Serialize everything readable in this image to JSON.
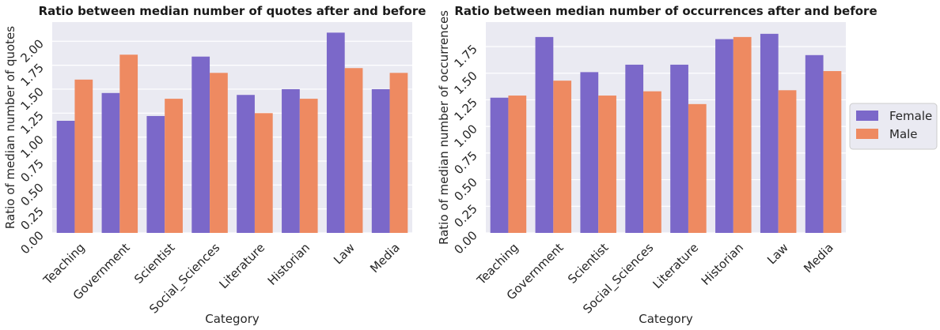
{
  "colors": {
    "female": "#7B68C9",
    "male": "#EE8A61",
    "plot_bg": "#EAEAF2",
    "grid": "#FFFFFF"
  },
  "legend": {
    "placement": "center-right",
    "entries": [
      "Female",
      "Male"
    ]
  },
  "chart_data": [
    {
      "type": "bar",
      "title": "Ratio between median number of quotes after and before",
      "xlabel": "Category",
      "ylabel": "Ratio of median number of quotes",
      "categories": [
        "Teaching",
        "Government",
        "Scientist",
        "Social_Sciences",
        "Literature",
        "Historian",
        "Law",
        "Media"
      ],
      "ylim": [
        0,
        2.2
      ],
      "yticks": [
        "0.00",
        "0.25",
        "0.50",
        "0.75",
        "1.00",
        "1.25",
        "1.50",
        "1.75",
        "2.00"
      ],
      "grid": true,
      "series": [
        {
          "name": "Female",
          "values": [
            1.17,
            1.46,
            1.22,
            1.84,
            1.44,
            1.5,
            2.09,
            1.5
          ]
        },
        {
          "name": "Male",
          "values": [
            1.6,
            1.86,
            1.4,
            1.67,
            1.25,
            1.4,
            1.72,
            1.67
          ]
        }
      ]
    },
    {
      "type": "bar",
      "title": "Ratio between median number of occurrences after and before",
      "xlabel": "Category",
      "ylabel": "Ratio of median number of occurrences",
      "categories": [
        "Teaching",
        "Government",
        "Scientist",
        "Social_Sciences",
        "Literature",
        "Historian",
        "Law",
        "Media"
      ],
      "ylim": [
        0,
        1.98
      ],
      "yticks": [
        "0.00",
        "0.25",
        "0.50",
        "0.75",
        "1.00",
        "1.25",
        "1.50",
        "1.75"
      ],
      "grid": true,
      "series": [
        {
          "name": "Female",
          "values": [
            1.27,
            1.84,
            1.51,
            1.58,
            1.58,
            1.82,
            1.87,
            1.67
          ]
        },
        {
          "name": "Male",
          "values": [
            1.29,
            1.43,
            1.29,
            1.33,
            1.21,
            1.84,
            1.34,
            1.52
          ]
        }
      ]
    }
  ]
}
